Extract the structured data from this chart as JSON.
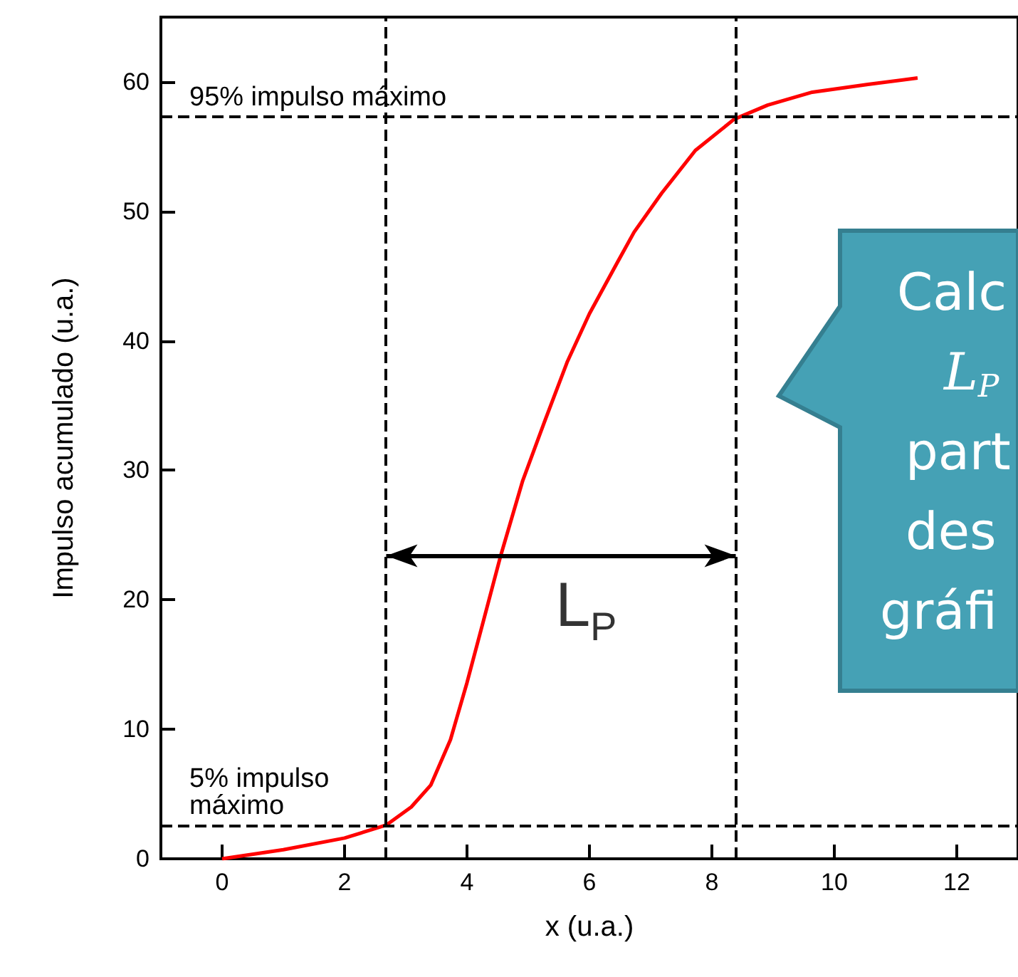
{
  "chart_data": {
    "type": "line",
    "xlabel": "x (u.a.)",
    "ylabel": "Impulso acumulado (u.a.)",
    "x": [
      0,
      1,
      2,
      2.68,
      3.09,
      3.41,
      3.73,
      4,
      4.27,
      4.55,
      4.91,
      5.27,
      5.64,
      6,
      6.45,
      6.73,
      7.18,
      7.73,
      8.36,
      8.91,
      9.64,
      10.55,
      11.36
    ],
    "series": [
      {
        "color": "#ff0000",
        "values": [
          0,
          0.7,
          1.6,
          2.6,
          4,
          5.7,
          9.2,
          13.6,
          18.4,
          23.4,
          29.2,
          33.8,
          38.4,
          42.1,
          46,
          48.4,
          51.4,
          54.7,
          57.1,
          58.2,
          59.2,
          59.8,
          60.3
        ]
      }
    ],
    "xlim": [
      -1,
      13
    ],
    "xticks": [
      0,
      2,
      4,
      6,
      8,
      10,
      12
    ],
    "ylim": [
      0,
      65
    ],
    "yticks": [
      0,
      10,
      20,
      30,
      40,
      50,
      60
    ],
    "grid": false,
    "ref_lines": [
      {
        "axis": "y",
        "value": 57.3,
        "label": "95% impulso máximo",
        "color": "#000000",
        "line_style": "dashed"
      },
      {
        "axis": "y",
        "value": 2.6,
        "label": "5% impulso máximo",
        "color": "#000000",
        "line_style": "dashed"
      },
      {
        "axis": "x",
        "value": 2.68,
        "color": "#000000",
        "line_style": "dashed"
      },
      {
        "axis": "x",
        "value": 8.39,
        "color": "#000000",
        "line_style": "dashed"
      }
    ],
    "annotations": [
      {
        "text": "L$_{P}$",
        "x": 4.55,
        "y": 23.4
      },
      "Calc",
      "L$_{P}$",
      "part",
      "des",
      "gráfi"
    ]
  }
}
